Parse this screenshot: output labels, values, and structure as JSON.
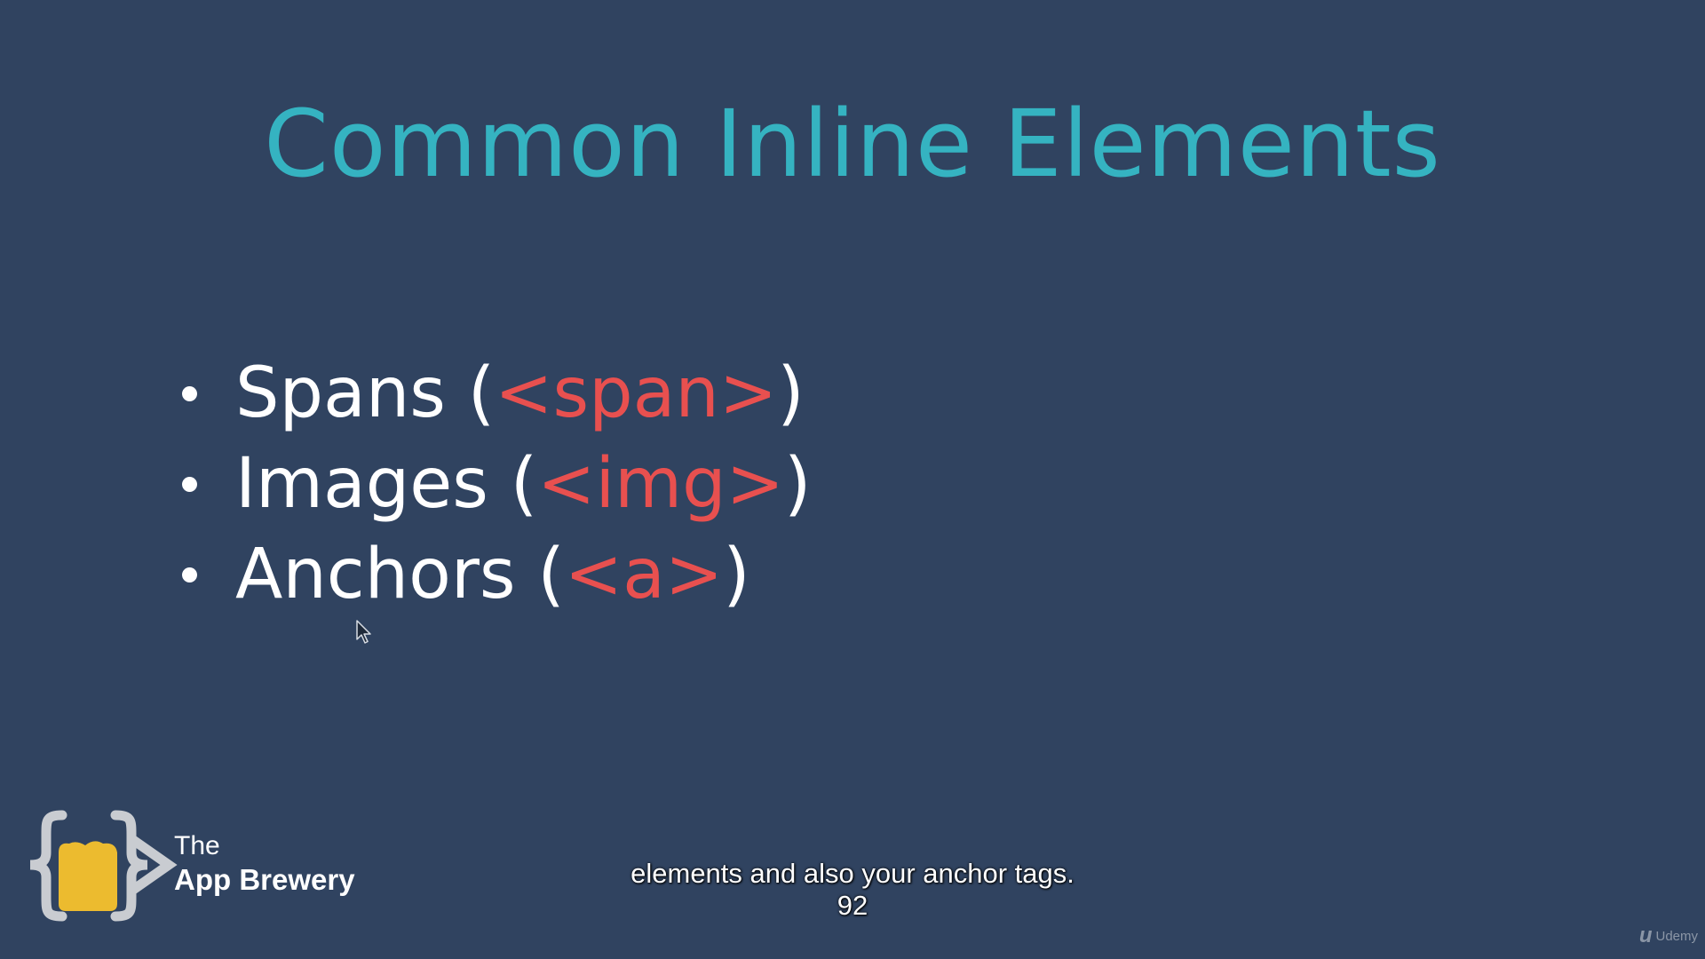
{
  "slide": {
    "title": "Common Inline Elements",
    "bullets": [
      {
        "label": "Spans (",
        "tag": "<span>",
        "close": ")"
      },
      {
        "label": "Images (",
        "tag": "<img>",
        "close": ")"
      },
      {
        "label": "Anchors (",
        "tag": "<a>",
        "close": ")"
      }
    ],
    "title_color": "#35b3c1",
    "tag_color": "#e8504f",
    "background_color": "#304360"
  },
  "logo": {
    "the": "The",
    "name": "App Brewery",
    "icon": "beer-mug-braces-logo"
  },
  "caption": {
    "line1": "elements and also your anchor tags.",
    "line2": "92"
  },
  "watermark": {
    "mark": "u",
    "text": "Udemy",
    "icon": "udemy-logo-icon"
  },
  "cursor": {
    "icon": "mouse-pointer-icon"
  }
}
